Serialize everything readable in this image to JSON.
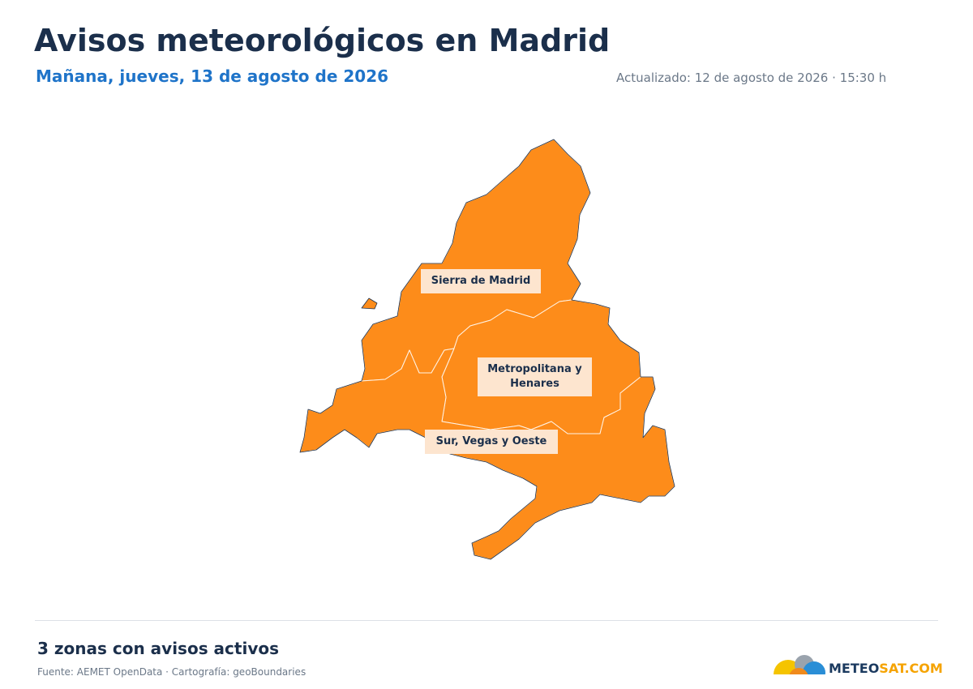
{
  "header": {
    "title": "Avisos meteorológicos en Madrid",
    "subtitle": "Mañana, jueves, 13 de agosto de 2026",
    "updated": "Actualizado: 12 de agosto de 2026 · 15:30 h"
  },
  "map": {
    "zones": [
      {
        "label": "Sierra de Madrid"
      },
      {
        "label": "Metropolitana y Henares"
      },
      {
        "label": "Sur, Vegas y Oeste"
      }
    ]
  },
  "footer": {
    "summary": "3 zonas con avisos activos",
    "source": "Fuente: AEMET OpenData · Cartografía: geoBoundaries",
    "logo": {
      "part1": "METEO",
      "part2": "SAT.COM"
    }
  }
}
